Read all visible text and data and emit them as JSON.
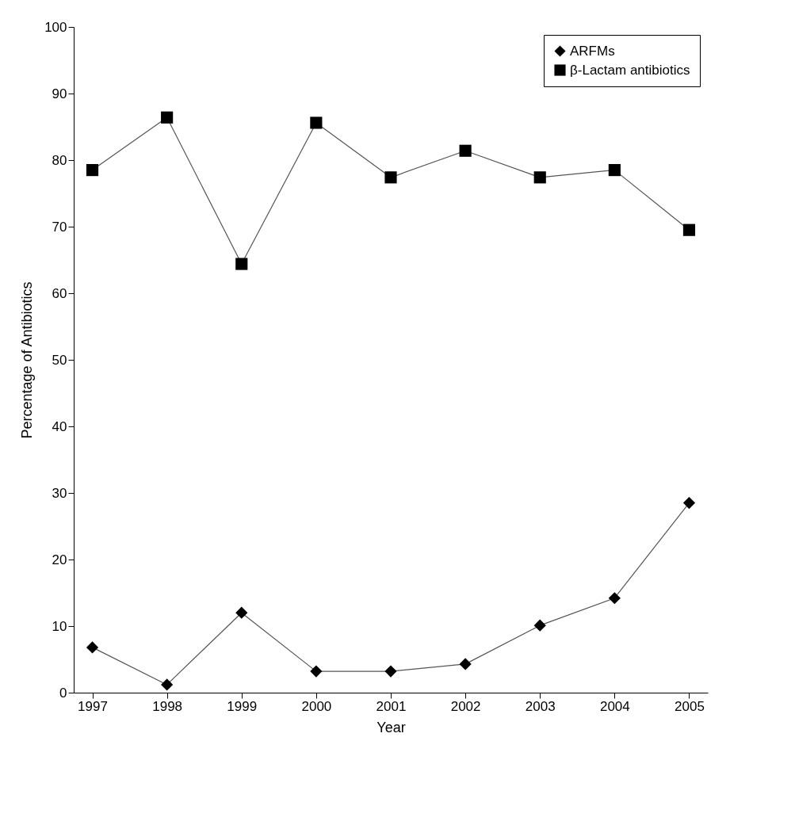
{
  "chart_data": {
    "type": "line",
    "xlabel": "Year",
    "ylabel": "Percentage of Antibiotics",
    "categories": [
      "1997",
      "1998",
      "1999",
      "2000",
      "2001",
      "2002",
      "2003",
      "2004",
      "2005"
    ],
    "series": [
      {
        "name": "ARFMs",
        "color": "#000000",
        "marker": "diamond",
        "values": [
          6.8,
          1.2,
          12,
          3.2,
          3.2,
          4.3,
          10.1,
          14.2,
          28.5
        ]
      },
      {
        "name": "β-Lactam antibiotics",
        "color": "#000000",
        "marker": "square",
        "values": [
          78.5,
          86.4,
          64.4,
          85.6,
          77.4,
          81.4,
          77.4,
          78.5,
          69.5
        ]
      }
    ],
    "ylim": [
      0,
      100
    ],
    "yticks": [
      0,
      10,
      20,
      30,
      40,
      50,
      60,
      70,
      80,
      90,
      100
    ],
    "grid": false,
    "legend": "top right",
    "line_style": "solid"
  }
}
